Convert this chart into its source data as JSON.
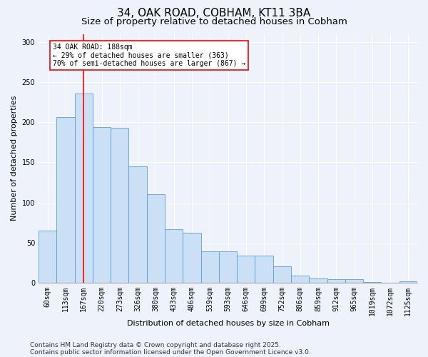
{
  "title1": "34, OAK ROAD, COBHAM, KT11 3BA",
  "title2": "Size of property relative to detached houses in Cobham",
  "xlabel": "Distribution of detached houses by size in Cobham",
  "ylabel": "Number of detached properties",
  "categories": [
    "60sqm",
    "113sqm",
    "167sqm",
    "220sqm",
    "273sqm",
    "326sqm",
    "380sqm",
    "433sqm",
    "486sqm",
    "539sqm",
    "593sqm",
    "646sqm",
    "699sqm",
    "752sqm",
    "806sqm",
    "859sqm",
    "912sqm",
    "965sqm",
    "1019sqm",
    "1072sqm",
    "1125sqm"
  ],
  "values": [
    65,
    206,
    236,
    194,
    193,
    145,
    110,
    67,
    62,
    39,
    39,
    34,
    34,
    20,
    9,
    5,
    4,
    4,
    1,
    0,
    2
  ],
  "bar_color": "#cce0f5",
  "bar_edge_color": "#5a9fd4",
  "red_line_index": 2,
  "annotation_line1": "34 OAK ROAD: 188sqm",
  "annotation_line2": "← 29% of detached houses are smaller (363)",
  "annotation_line3": "70% of semi-detached houses are larger (867) →",
  "annotation_box_color": "white",
  "annotation_box_edge": "red",
  "ylim": [
    0,
    310
  ],
  "yticks": [
    0,
    50,
    100,
    150,
    200,
    250,
    300
  ],
  "background_color": "#eef2fb",
  "footer1": "Contains HM Land Registry data © Crown copyright and database right 2025.",
  "footer2": "Contains public sector information licensed under the Open Government Licence v3.0.",
  "title_fontsize": 11,
  "subtitle_fontsize": 9.5,
  "axis_label_fontsize": 8,
  "tick_fontsize": 7,
  "annotation_fontsize": 7,
  "footer_fontsize": 6.5
}
